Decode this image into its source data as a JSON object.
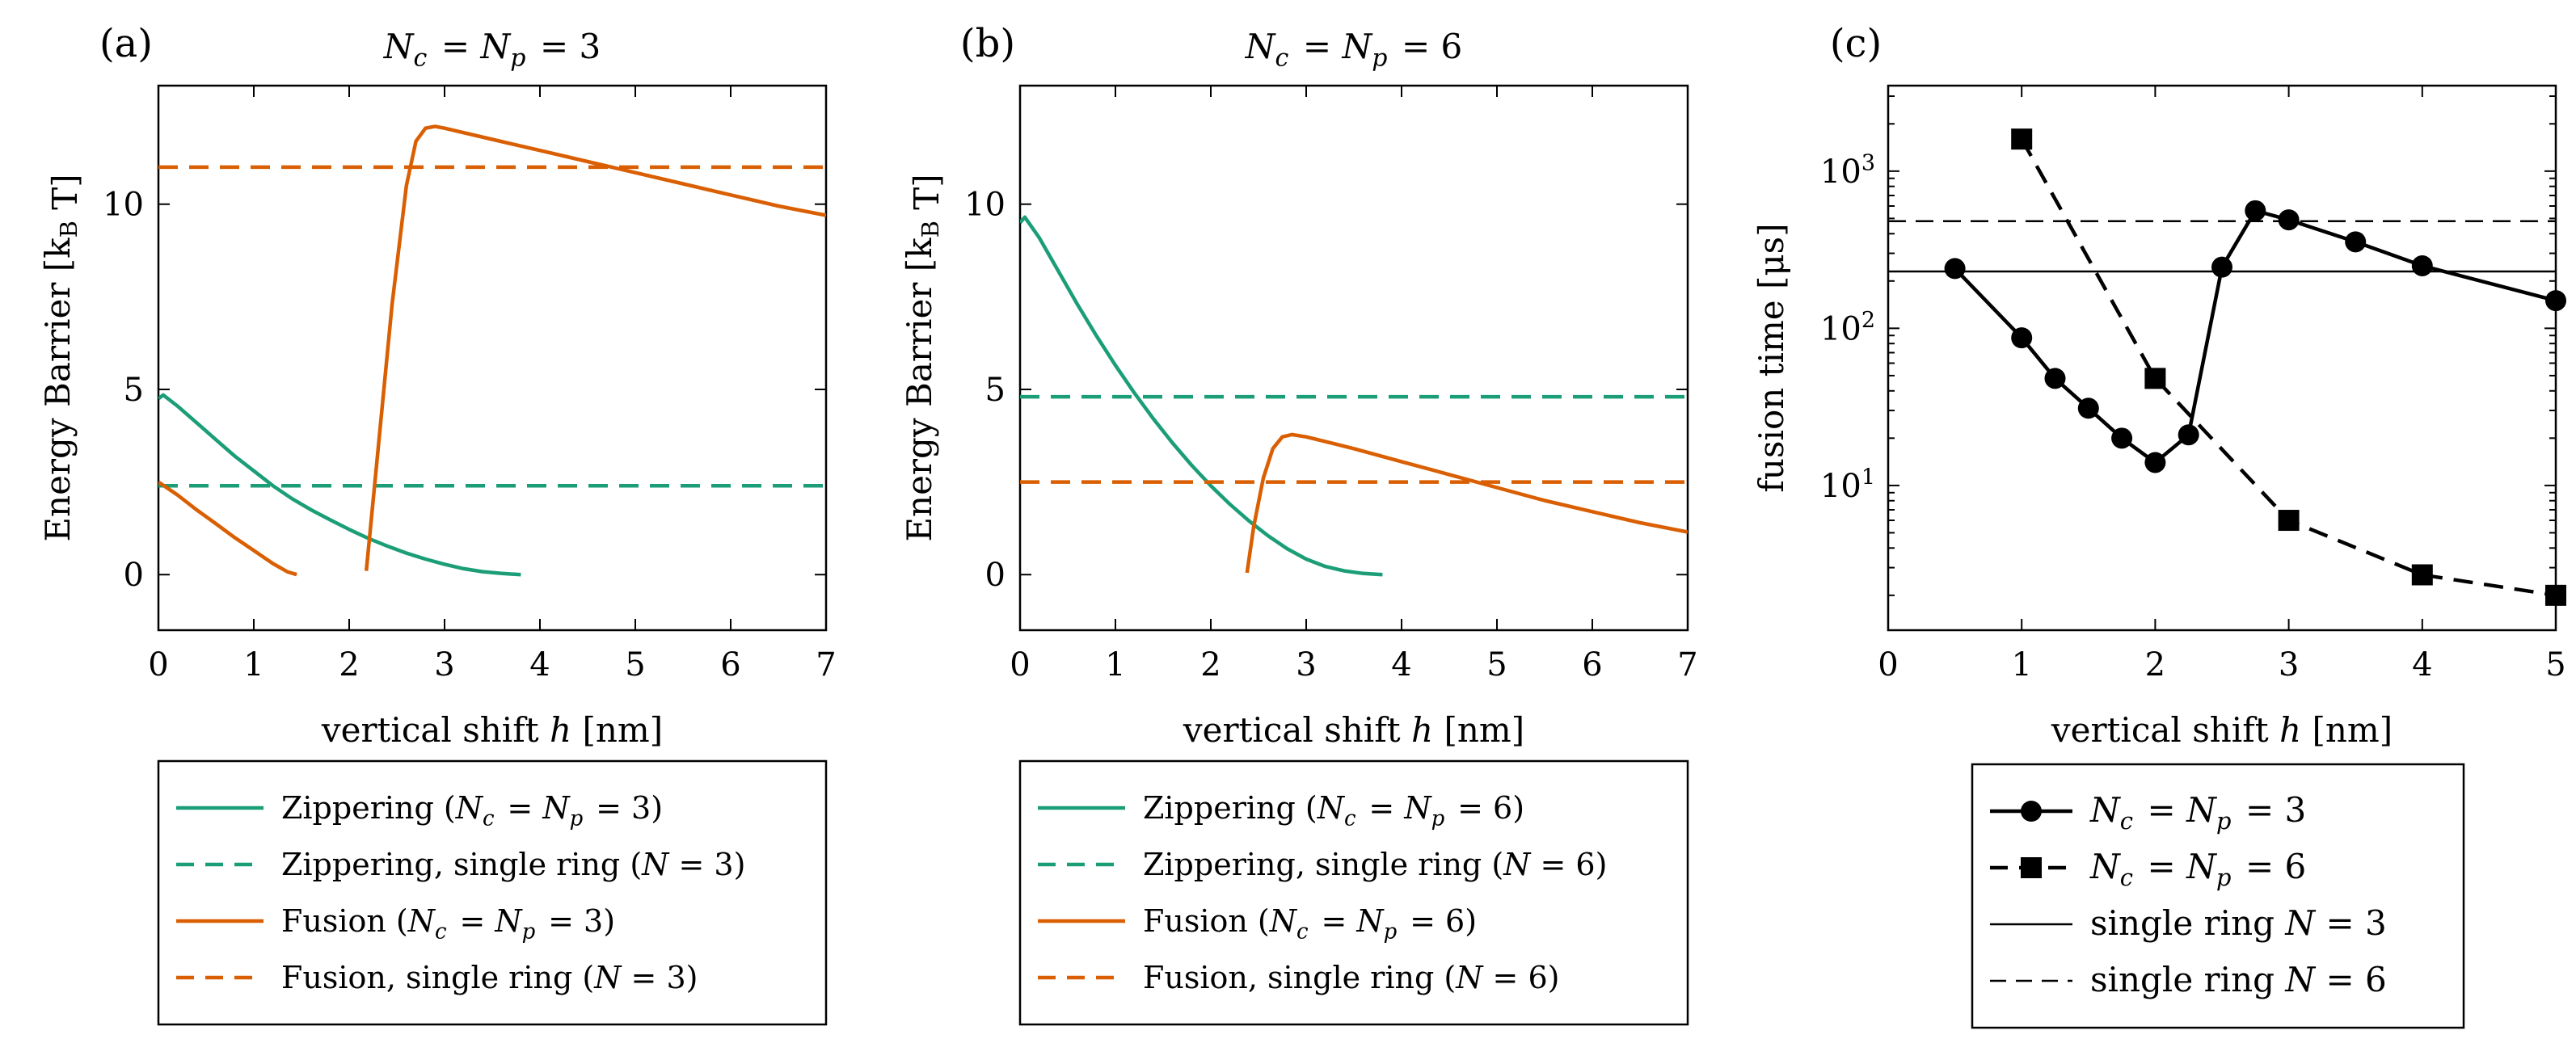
{
  "colors": {
    "zipper": "#1b9e77",
    "fusion": "#d95f02",
    "black": "#000000"
  },
  "chart_data": [
    {
      "type": "line",
      "panel_label": "(a)",
      "title": "N_c = N_p = 3",
      "xlabel": "vertical shift h [nm]",
      "ylabel": "Energy Barrier [k_B T]",
      "xlim": [
        0,
        7
      ],
      "ylim": [
        -1.5,
        13.2
      ],
      "xticks": [
        "0",
        "1",
        "2",
        "3",
        "4",
        "5",
        "6",
        "7"
      ],
      "yticks": [
        "0",
        "5",
        "10"
      ],
      "series": [
        {
          "name": "Zippering (N_c = N_p = 3)",
          "color": "zipper",
          "dash": false,
          "x": [
            0,
            0.05,
            0.2,
            0.4,
            0.6,
            0.8,
            1.0,
            1.2,
            1.4,
            1.6,
            1.8,
            2.0,
            2.2,
            2.4,
            2.6,
            2.8,
            3.0,
            3.2,
            3.4,
            3.6,
            3.8
          ],
          "y": [
            4.75,
            4.85,
            4.55,
            4.1,
            3.65,
            3.2,
            2.8,
            2.4,
            2.05,
            1.75,
            1.48,
            1.22,
            0.98,
            0.77,
            0.58,
            0.42,
            0.28,
            0.16,
            0.08,
            0.03,
            0.0
          ]
        },
        {
          "name": "Zippering, single ring (N = 3)",
          "color": "zipper",
          "dash": true,
          "x": [
            0,
            7
          ],
          "y": [
            2.4,
            2.4
          ]
        },
        {
          "name": "Fusion (N_c = N_p = 3)",
          "color": "fusion",
          "dash": false,
          "x": [
            0,
            0.2,
            0.4,
            0.6,
            0.8,
            1.0,
            1.2,
            1.35,
            1.45
          ],
          "y": [
            2.5,
            2.15,
            1.75,
            1.38,
            1.0,
            0.65,
            0.3,
            0.08,
            0.0
          ]
        },
        {
          "name": "Fusion (N_c = N_p = 3) segment 2",
          "color": "fusion",
          "dash": false,
          "x": [
            2.18,
            2.3,
            2.45,
            2.6,
            2.7,
            2.8,
            2.9,
            3.0,
            3.5,
            4.0,
            4.5,
            5.0,
            5.5,
            6.0,
            6.5,
            7.0
          ],
          "y": [
            0.1,
            3.3,
            7.3,
            10.5,
            11.7,
            12.05,
            12.1,
            12.05,
            11.75,
            11.45,
            11.15,
            10.85,
            10.55,
            10.25,
            9.95,
            9.7
          ]
        },
        {
          "name": "Fusion, single ring (N = 3)",
          "color": "fusion",
          "dash": true,
          "x": [
            0,
            7
          ],
          "y": [
            11.0,
            11.0
          ]
        }
      ],
      "legend": [
        "Zippering (N_c = N_p = 3)",
        "Zippering, single ring (N = 3)",
        "Fusion (N_c = N_p = 3)",
        "Fusion, single ring (N = 3)"
      ]
    },
    {
      "type": "line",
      "panel_label": "(b)",
      "title": "N_c = N_p = 6",
      "xlabel": "vertical shift h [nm]",
      "ylabel": "Energy Barrier [k_B T]",
      "xlim": [
        0,
        7
      ],
      "ylim": [
        -1.5,
        13.2
      ],
      "xticks": [
        "0",
        "1",
        "2",
        "3",
        "4",
        "5",
        "6",
        "7"
      ],
      "yticks": [
        "0",
        "5",
        "10"
      ],
      "series": [
        {
          "name": "Zippering (N_c = N_p = 6)",
          "color": "zipper",
          "dash": false,
          "x": [
            0,
            0.05,
            0.2,
            0.4,
            0.6,
            0.8,
            1.0,
            1.2,
            1.4,
            1.6,
            1.8,
            2.0,
            2.2,
            2.4,
            2.6,
            2.8,
            3.0,
            3.2,
            3.4,
            3.6,
            3.8
          ],
          "y": [
            9.5,
            9.65,
            9.1,
            8.2,
            7.3,
            6.45,
            5.65,
            4.9,
            4.2,
            3.55,
            2.95,
            2.4,
            1.9,
            1.45,
            1.05,
            0.7,
            0.42,
            0.22,
            0.1,
            0.03,
            0.0
          ]
        },
        {
          "name": "Zippering, single ring (N = 6)",
          "color": "zipper",
          "dash": true,
          "x": [
            0,
            7
          ],
          "y": [
            4.8,
            4.8
          ]
        },
        {
          "name": "Fusion (N_c = N_p = 6)",
          "color": "fusion",
          "dash": false,
          "x": [
            2.38,
            2.45,
            2.55,
            2.65,
            2.75,
            2.85,
            3.0,
            3.5,
            4.0,
            4.5,
            5.0,
            5.5,
            6.0,
            6.5,
            7.0
          ],
          "y": [
            0.05,
            1.3,
            2.6,
            3.4,
            3.72,
            3.78,
            3.72,
            3.4,
            3.05,
            2.7,
            2.35,
            2.0,
            1.7,
            1.4,
            1.15
          ]
        },
        {
          "name": "Fusion, single ring (N = 6)",
          "color": "fusion",
          "dash": true,
          "x": [
            0,
            7
          ],
          "y": [
            2.5,
            2.5
          ]
        }
      ],
      "legend": [
        "Zippering (N_c = N_p = 6)",
        "Zippering, single ring (N = 6)",
        "Fusion (N_c = N_p = 6)",
        "Fusion, single ring (N = 6)"
      ]
    },
    {
      "type": "line",
      "yscale": "log",
      "panel_label": "(c)",
      "title": "",
      "xlabel": "vertical shift h [nm]",
      "ylabel": "fusion time [μs]",
      "xlim": [
        0,
        5
      ],
      "ylim": [
        1.2,
        3500
      ],
      "xticks": [
        "0",
        "1",
        "2",
        "3",
        "4",
        "5"
      ],
      "yticks": [
        "10^1",
        "10^2",
        "10^3"
      ],
      "series": [
        {
          "name": "N_c = N_p = 3",
          "color": "black",
          "dash": false,
          "marker": "circle",
          "x": [
            0.5,
            1.0,
            1.25,
            1.5,
            1.75,
            2.0,
            2.25,
            2.5,
            2.75,
            3.0,
            3.5,
            4.0,
            5.0
          ],
          "y": [
            240,
            87,
            48,
            31,
            20,
            14,
            21,
            245,
            560,
            490,
            355,
            250,
            150
          ]
        },
        {
          "name": "N_c = N_p = 6",
          "color": "black",
          "dash": true,
          "marker": "square",
          "x": [
            1.0,
            2.0,
            3.0,
            4.0,
            5.0
          ],
          "y": [
            1600,
            48,
            6,
            2.7,
            2.0
          ]
        },
        {
          "name": "single ring N = 3",
          "color": "black",
          "dash": false,
          "thin": true,
          "x": [
            0,
            5
          ],
          "y": [
            230,
            230
          ]
        },
        {
          "name": "single ring N = 6",
          "color": "black",
          "dash": true,
          "thin": true,
          "x": [
            0,
            5
          ],
          "y": [
            480,
            480
          ]
        }
      ],
      "legend": [
        "N_c = N_p = 3",
        "N_c = N_p = 6",
        "single ring N = 3",
        "single ring N = 6"
      ]
    }
  ]
}
